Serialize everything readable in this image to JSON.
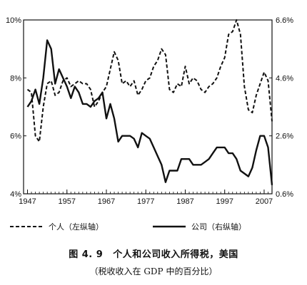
{
  "chart_data": {
    "type": "line",
    "x_ticks": [
      "1947",
      "1957",
      "1967",
      "1977",
      "1987",
      "1997",
      "2007"
    ],
    "xlim": [
      1946,
      2009
    ],
    "y_left": {
      "ticks": [
        "4%",
        "6%",
        "8%",
        "10%"
      ],
      "ylim": [
        4,
        10
      ]
    },
    "y_right": {
      "ticks": [
        "0.6%",
        "2.6%",
        "4.6%",
        "6.6%"
      ],
      "ylim": [
        0.6,
        6.6
      ]
    },
    "grid": false,
    "legend_position": "bottom",
    "series": [
      {
        "name": "个人（左纵轴）",
        "axis": "left",
        "style": "dashed",
        "color": "#111111",
        "points": [
          [
            1947,
            7.6
          ],
          [
            1948,
            7.5
          ],
          [
            1949,
            6.0
          ],
          [
            1950,
            5.8
          ],
          [
            1951,
            7.0
          ],
          [
            1952,
            7.8
          ],
          [
            1953,
            7.9
          ],
          [
            1954,
            7.4
          ],
          [
            1955,
            7.5
          ],
          [
            1956,
            7.9
          ],
          [
            1957,
            8.0
          ],
          [
            1958,
            7.7
          ],
          [
            1959,
            7.8
          ],
          [
            1960,
            7.9
          ],
          [
            1961,
            7.8
          ],
          [
            1962,
            7.8
          ],
          [
            1963,
            7.6
          ],
          [
            1964,
            7.0
          ],
          [
            1965,
            7.2
          ],
          [
            1966,
            7.5
          ],
          [
            1967,
            7.7
          ],
          [
            1968,
            8.3
          ],
          [
            1969,
            8.9
          ],
          [
            1970,
            8.6
          ],
          [
            1971,
            7.8
          ],
          [
            1972,
            7.9
          ],
          [
            1973,
            7.7
          ],
          [
            1974,
            7.9
          ],
          [
            1975,
            7.4
          ],
          [
            1976,
            7.6
          ],
          [
            1977,
            7.9
          ],
          [
            1978,
            8.0
          ],
          [
            1979,
            8.4
          ],
          [
            1980,
            8.6
          ],
          [
            1981,
            9.0
          ],
          [
            1982,
            8.8
          ],
          [
            1983,
            7.6
          ],
          [
            1984,
            7.5
          ],
          [
            1985,
            7.8
          ],
          [
            1986,
            7.7
          ],
          [
            1987,
            8.4
          ],
          [
            1988,
            7.8
          ],
          [
            1989,
            8.0
          ],
          [
            1990,
            7.9
          ],
          [
            1991,
            7.6
          ],
          [
            1992,
            7.5
          ],
          [
            1993,
            7.7
          ],
          [
            1994,
            7.8
          ],
          [
            1995,
            8.0
          ],
          [
            1996,
            8.4
          ],
          [
            1997,
            8.7
          ],
          [
            1998,
            9.5
          ],
          [
            1999,
            9.6
          ],
          [
            2000,
            10.0
          ],
          [
            2001,
            9.5
          ],
          [
            2002,
            7.7
          ],
          [
            2003,
            6.9
          ],
          [
            2004,
            6.8
          ],
          [
            2005,
            7.4
          ],
          [
            2006,
            7.8
          ],
          [
            2007,
            8.2
          ],
          [
            2008,
            7.9
          ],
          [
            2009,
            6.5
          ]
        ]
      },
      {
        "name": "公司（右纵轴）",
        "axis": "right",
        "style": "solid",
        "color": "#111111",
        "points": [
          [
            1947,
            3.6
          ],
          [
            1948,
            3.8
          ],
          [
            1949,
            4.2
          ],
          [
            1950,
            3.7
          ],
          [
            1951,
            4.6
          ],
          [
            1952,
            5.9
          ],
          [
            1953,
            5.6
          ],
          [
            1954,
            4.4
          ],
          [
            1955,
            4.9
          ],
          [
            1956,
            4.6
          ],
          [
            1957,
            4.3
          ],
          [
            1958,
            3.9
          ],
          [
            1959,
            4.3
          ],
          [
            1960,
            4.1
          ],
          [
            1961,
            3.7
          ],
          [
            1962,
            3.7
          ],
          [
            1963,
            3.6
          ],
          [
            1964,
            3.8
          ],
          [
            1965,
            3.9
          ],
          [
            1966,
            4.1
          ],
          [
            1967,
            3.2
          ],
          [
            1968,
            3.7
          ],
          [
            1969,
            3.2
          ],
          [
            1970,
            2.4
          ],
          [
            1971,
            2.6
          ],
          [
            1972,
            2.6
          ],
          [
            1973,
            2.6
          ],
          [
            1974,
            2.5
          ],
          [
            1975,
            2.2
          ],
          [
            1976,
            2.7
          ],
          [
            1977,
            2.6
          ],
          [
            1978,
            2.5
          ],
          [
            1979,
            2.2
          ],
          [
            1980,
            1.9
          ],
          [
            1981,
            1.6
          ],
          [
            1982,
            1.0
          ],
          [
            1983,
            1.4
          ],
          [
            1984,
            1.4
          ],
          [
            1985,
            1.4
          ],
          [
            1986,
            1.8
          ],
          [
            1987,
            1.8
          ],
          [
            1988,
            1.8
          ],
          [
            1989,
            1.6
          ],
          [
            1990,
            1.6
          ],
          [
            1991,
            1.6
          ],
          [
            1992,
            1.7
          ],
          [
            1993,
            1.8
          ],
          [
            1994,
            2.0
          ],
          [
            1995,
            2.2
          ],
          [
            1996,
            2.2
          ],
          [
            1997,
            2.2
          ],
          [
            1998,
            2.0
          ],
          [
            1999,
            2.0
          ],
          [
            2000,
            1.8
          ],
          [
            2001,
            1.4
          ],
          [
            2002,
            1.3
          ],
          [
            2003,
            1.2
          ],
          [
            2004,
            1.5
          ],
          [
            2005,
            2.1
          ],
          [
            2006,
            2.6
          ],
          [
            2007,
            2.6
          ],
          [
            2008,
            2.2
          ],
          [
            2009,
            0.9
          ]
        ]
      }
    ]
  },
  "caption": {
    "figure_number": "图 4. 9",
    "title": "个人和公司收入所得税，美国",
    "subtitle": "（税收收入在 GDP 中的百分比）"
  }
}
